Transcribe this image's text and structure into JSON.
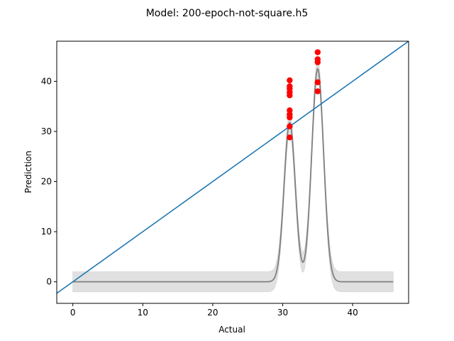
{
  "chart_data": {
    "type": "line",
    "title": "Model: 200-epoch-not-square.h5",
    "xlabel": "Actual",
    "ylabel": "Prediction",
    "xlim": [
      -2.3,
      48.0
    ],
    "ylim": [
      -4.3,
      48.0
    ],
    "xticks": [
      0,
      10,
      20,
      30,
      40
    ],
    "yticks": [
      0,
      10,
      20,
      30,
      40
    ],
    "grid": false,
    "legend": "none",
    "series": [
      {
        "kind": "scatter",
        "color": "#ff0000",
        "points": [
          {
            "x": 31,
            "y": 28.8
          },
          {
            "x": 31,
            "y": 31.0
          },
          {
            "x": 31,
            "y": 32.8
          },
          {
            "x": 31,
            "y": 33.4
          },
          {
            "x": 31,
            "y": 34.2
          },
          {
            "x": 31,
            "y": 37.2
          },
          {
            "x": 31,
            "y": 37.8
          },
          {
            "x": 31,
            "y": 38.5
          },
          {
            "x": 31,
            "y": 39.0
          },
          {
            "x": 31,
            "y": 40.2
          },
          {
            "x": 35,
            "y": 38.0
          },
          {
            "x": 35,
            "y": 39.8
          },
          {
            "x": 35,
            "y": 43.8
          },
          {
            "x": 35,
            "y": 44.4
          },
          {
            "x": 35,
            "y": 45.8
          }
        ]
      },
      {
        "kind": "identity-line",
        "color": "#1f77b4",
        "x": [
          -2.3,
          48.0
        ],
        "y": [
          -2.3,
          48.0
        ]
      },
      {
        "kind": "density-curve",
        "color": "#808080",
        "band_color": "#e0e0e0",
        "band_halfwidth": 2.0,
        "x_range": [
          0,
          45.8
        ],
        "components": [
          {
            "mean": 31,
            "sd": 0.8,
            "peak": 31.8
          },
          {
            "mean": 35,
            "sd": 0.85,
            "peak": 42.5
          }
        ]
      }
    ]
  }
}
